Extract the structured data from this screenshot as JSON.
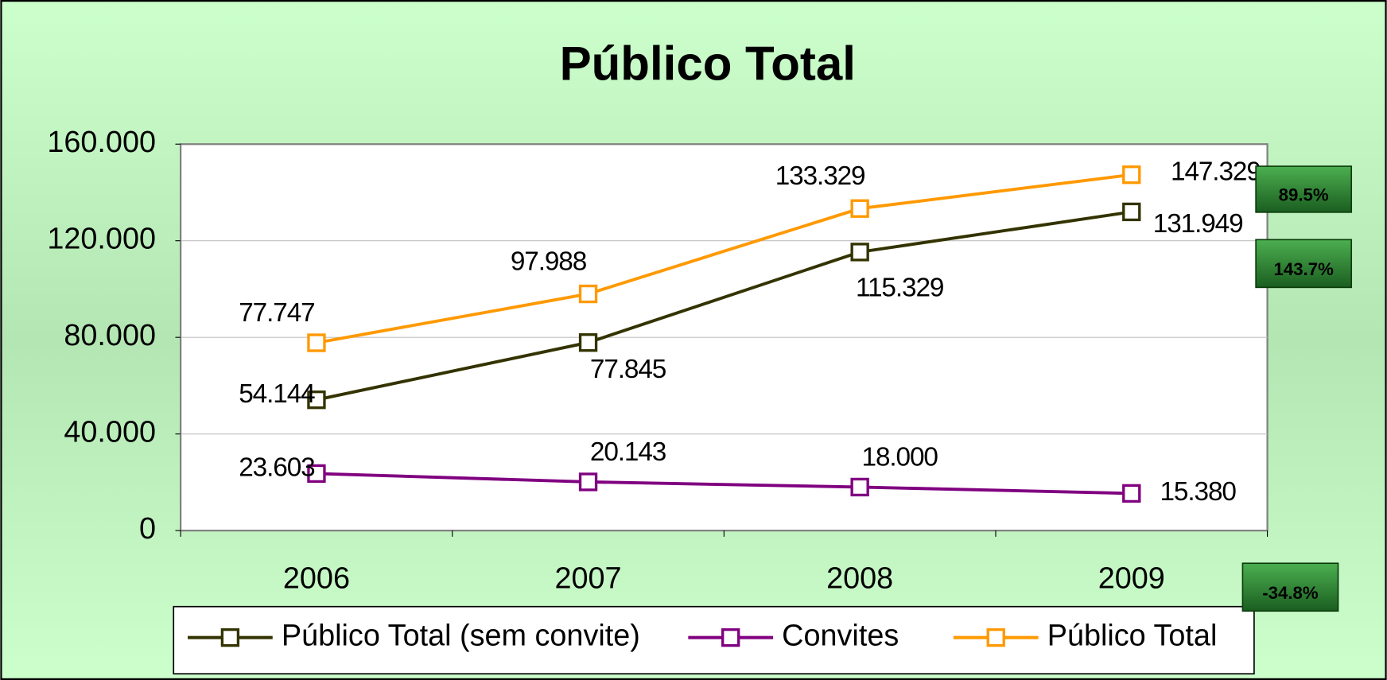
{
  "chart_data": {
    "type": "line",
    "title": "Público Total",
    "categories": [
      "2006",
      "2007",
      "2008",
      "2009"
    ],
    "series": [
      {
        "name": "Público Total (sem convite)",
        "color": "#333300",
        "values": [
          54144,
          77845,
          115329,
          131949
        ],
        "value_labels": [
          "54.144",
          "77.845",
          "115.329",
          "131.949"
        ]
      },
      {
        "name": "Convites",
        "color": "#800080",
        "values": [
          23603,
          20143,
          18000,
          15380
        ],
        "value_labels": [
          "23.603",
          "20.143",
          "18.000",
          "15.380"
        ]
      },
      {
        "name": "Público Total",
        "color": "#ff9900",
        "values": [
          77747,
          97988,
          133329,
          147329
        ],
        "value_labels": [
          "77.747",
          "97.988",
          "133.329",
          "147.329"
        ]
      }
    ],
    "ylim": [
      0,
      160000
    ],
    "yticks": [
      0,
      {
        "value": 40000,
        "label": "40.000"
      },
      {
        "value": 80000,
        "label": "80.000"
      },
      {
        "value": 120000,
        "label": "120.000"
      },
      {
        "value": 160000,
        "label": "160.000"
      }
    ],
    "grid": true,
    "annotations": [
      "89.5%",
      "143.7%",
      "-34.8%"
    ]
  }
}
